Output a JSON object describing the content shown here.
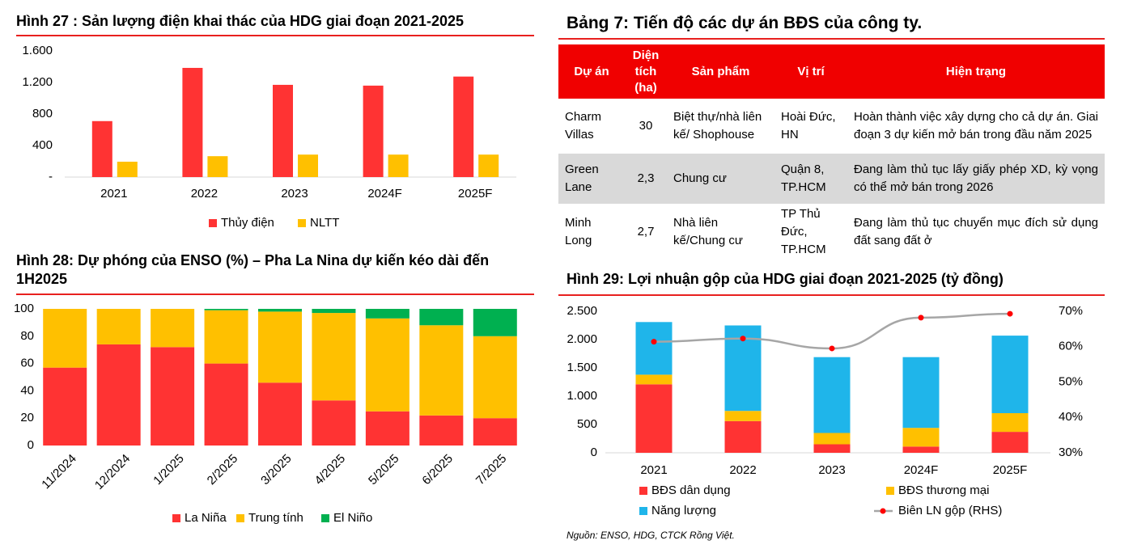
{
  "chart_data": [
    {
      "type": "bar",
      "title": "Hình 27 : Sản lượng điện khai thác của HDG giai đoạn 2021-2025",
      "categories": [
        "2021",
        "2022",
        "2023",
        "2024F",
        "2025F"
      ],
      "series": [
        {
          "name": "Thủy điện",
          "color": "#ff3333",
          "values": [
            710,
            1385,
            1170,
            1160,
            1275
          ]
        },
        {
          "name": "NLTT",
          "color": "#ffc000",
          "values": [
            195,
            265,
            285,
            285,
            285
          ]
        }
      ],
      "ylim": [
        0,
        1600
      ],
      "yticks": [
        {
          "value": 0,
          "label": "-"
        },
        400,
        800,
        {
          "value": 1200,
          "label": "1.200"
        },
        {
          "value": 1600,
          "label": "1.600"
        }
      ],
      "stacked": false
    },
    {
      "type": "bar",
      "title": "Hình 28: Dự phóng của ENSO (%) – Pha La Nina dự kiến kéo dài đến 1H2025",
      "categories": [
        "11/2024",
        "12/2024",
        "1/2025",
        "2/2025",
        "3/2025",
        "4/2025",
        "5/2025",
        "6/2025",
        "7/2025"
      ],
      "series": [
        {
          "name": "La Niña",
          "color": "#ff3333",
          "values": [
            57,
            74,
            72,
            60,
            46,
            33,
            25,
            22,
            20
          ]
        },
        {
          "name": "Trung tính",
          "color": "#ffc000",
          "values": [
            43,
            26,
            28,
            39,
            52,
            64,
            68,
            66,
            60
          ]
        },
        {
          "name": "El Niño",
          "color": "#00b050",
          "values": [
            0,
            0,
            0,
            1,
            2,
            3,
            7,
            12,
            20
          ]
        }
      ],
      "ylim": [
        0,
        100
      ],
      "yticks": [
        0,
        20,
        40,
        60,
        80,
        100
      ],
      "stacked": true
    },
    {
      "type": "bar",
      "title": "Hình 29: Lợi nhuận gộp của HDG giai đoạn 2021-2025 (tỷ đồng)",
      "categories": [
        "2021",
        "2022",
        "2023",
        "2024F",
        "2025F"
      ],
      "series": [
        {
          "name": "BĐS dân dụng",
          "color": "#ff3333",
          "values": [
            1210,
            560,
            150,
            110,
            370
          ]
        },
        {
          "name": "BĐS thương mại",
          "color": "#ffc000",
          "values": [
            170,
            180,
            200,
            330,
            330
          ]
        },
        {
          "name": "Năng lượng",
          "color": "#1fb5ea",
          "values": [
            930,
            1510,
            1340,
            1250,
            1370
          ]
        },
        {
          "name": "Biên LN gộp (RHS)",
          "color": "#a6a6a6",
          "marker_color": "#ff0000",
          "axis": "y2",
          "values": [
            61.4,
            62.3,
            59.5,
            68.2,
            69.3
          ]
        }
      ],
      "ylim": [
        0,
        2500
      ],
      "yticks": [
        0,
        500,
        {
          "value": 1000,
          "label": "1.000"
        },
        {
          "value": 1500,
          "label": "1.500"
        },
        {
          "value": 2000,
          "label": "2.000"
        },
        {
          "value": 2500,
          "label": "2.500"
        }
      ],
      "y2lim": [
        30,
        70
      ],
      "y2ticks": [
        {
          "value": 30,
          "label": "30%"
        },
        {
          "value": 40,
          "label": "40%"
        },
        {
          "value": 50,
          "label": "50%"
        },
        {
          "value": 60,
          "label": "60%"
        },
        {
          "value": 70,
          "label": "70%"
        }
      ],
      "stacked": true
    }
  ],
  "table": {
    "title": "Bảng 7: Tiến độ các dự án BĐS của công ty.",
    "header": [
      "Dự án",
      "Diện tích (ha)",
      "Sản phẩm",
      "Vị trí",
      "Hiện trạng"
    ],
    "rows": [
      [
        "Charm Villas",
        "30",
        "Biệt thự/nhà liên kế/ Shophouse",
        "Hoài Đức, HN",
        "Hoàn thành việc xây dựng cho cả dự án. Giai đoạn 3 dự kiến mở bán trong đầu năm 2025"
      ],
      [
        "Green Lane",
        "2,3",
        "Chung cư",
        "Quận 8, TP.HCM",
        "Đang làm thủ tục lấy giấy phép XD, kỳ vọng có thể mở bán trong 2026"
      ],
      [
        "Minh Long",
        "2,7",
        "Nhà liên kế/Chung cư",
        "TP Thủ Đức, TP.HCM",
        "Đang làm thủ tục chuyển mục đích sử dụng đất sang đất ở"
      ]
    ]
  },
  "source": "Nguồn: ENSO, HDG, CTCK Rồng Việt."
}
